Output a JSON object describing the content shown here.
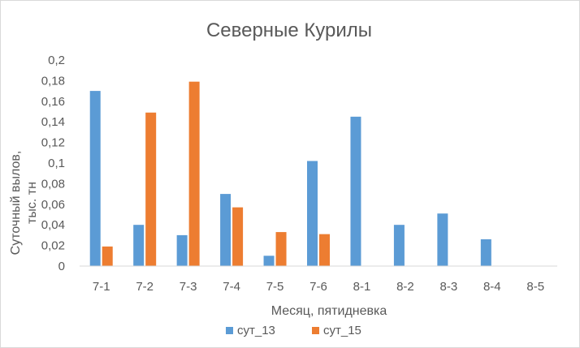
{
  "chart_data": {
    "type": "bar",
    "title": "Северные Курилы",
    "xlabel": "Месяц, пятидневка",
    "ylabel_lines": [
      "Суточный вылов,",
      "тыс. тн"
    ],
    "categories": [
      "7-1",
      "7-2",
      "7-3",
      "7-4",
      "7-5",
      "7-6",
      "8-1",
      "8-2",
      "8-3",
      "8-4",
      "8-5"
    ],
    "ylim": [
      0,
      0.2
    ],
    "yticks": [
      "0",
      "0,02",
      "0,04",
      "0,06",
      "0,08",
      "0,1",
      "0,12",
      "0,14",
      "0,16",
      "0,18",
      "0,2"
    ],
    "grid": false,
    "legend_position": "bottom",
    "series": [
      {
        "name": "сут_13",
        "color": "#5b9bd5",
        "values": [
          0.17,
          0.04,
          0.03,
          0.07,
          0.01,
          0.102,
          0.145,
          0.04,
          0.051,
          0.026,
          0
        ]
      },
      {
        "name": "сут_15",
        "color": "#ed7d31",
        "values": [
          0.019,
          0.149,
          0.179,
          0.057,
          0.033,
          0.031,
          0,
          0,
          0,
          0,
          0
        ]
      }
    ]
  }
}
